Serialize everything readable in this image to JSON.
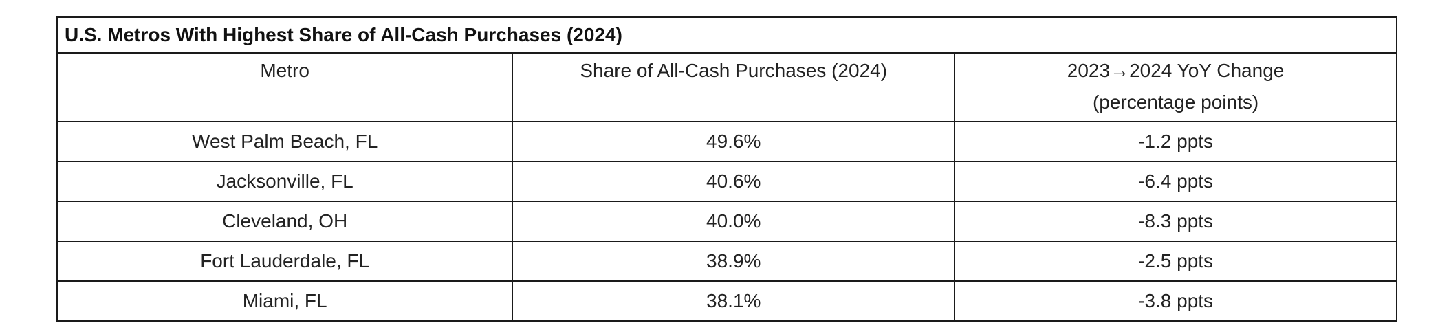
{
  "table": {
    "title": "U.S. Metros With Highest Share of All-Cash Purchases (2024)",
    "columns": {
      "metro": "Metro",
      "share": "Share of All-Cash Purchases (2024)",
      "change_line1": "2023→2024 YoY Change",
      "change_line2": "(percentage points)"
    },
    "rows": [
      {
        "metro": "West Palm Beach, FL",
        "share": "49.6%",
        "change": "-1.2 ppts"
      },
      {
        "metro": "Jacksonville, FL",
        "share": "40.6%",
        "change": "-6.4 ppts"
      },
      {
        "metro": "Cleveland, OH",
        "share": "40.0%",
        "change": "-8.3 ppts"
      },
      {
        "metro": "Fort Lauderdale, FL",
        "share": "38.9%",
        "change": "-2.5 ppts"
      },
      {
        "metro": "Miami, FL",
        "share": "38.1%",
        "change": "-3.8 ppts"
      }
    ]
  }
}
